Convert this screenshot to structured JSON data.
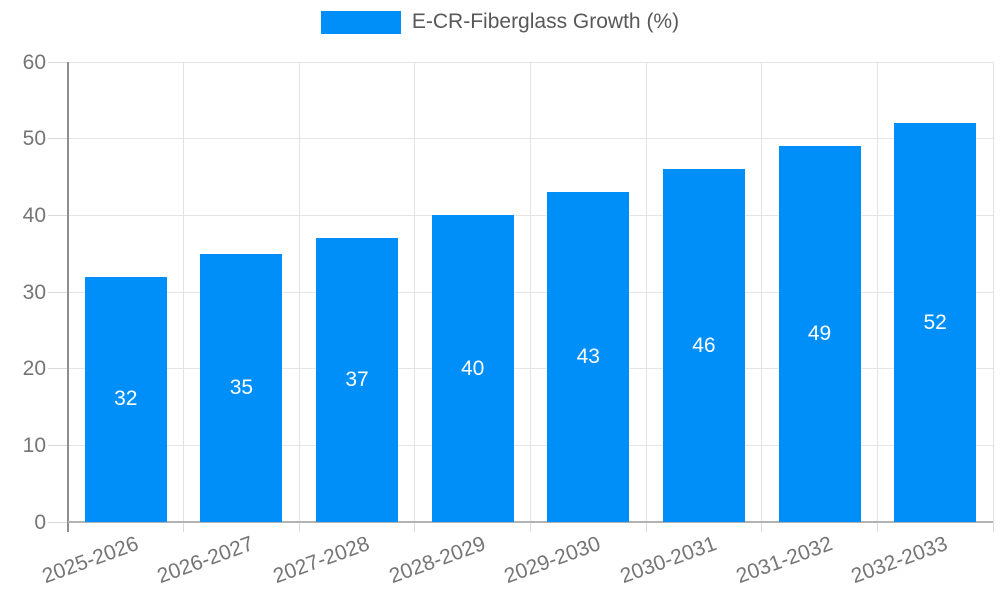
{
  "legend": {
    "label": "E-CR-Fiberglass Growth (%)"
  },
  "colors": {
    "bar": "#008FF8",
    "value_label": "#FFFFFF",
    "axis_label": "#757575",
    "legend_text": "#595959",
    "grid_horizontal": "#E6E6E6",
    "grid_vertical": "#E3E3E3",
    "tick": "#D9D9D9",
    "y_axis_line": "#8E8E8E",
    "x_axis_line": "#B3B3B3"
  },
  "chart_data": {
    "type": "bar",
    "title": "",
    "xlabel": "",
    "ylabel": "",
    "categories": [
      "2025-2026",
      "2026-2027",
      "2027-2028",
      "2028-2029",
      "2029-2030",
      "2030-2031",
      "2031-2032",
      "2032-2033"
    ],
    "series": [
      {
        "name": "E-CR-Fiberglass Growth (%)",
        "values": [
          32,
          35,
          37,
          40,
          43,
          46,
          49,
          52
        ]
      }
    ],
    "value_labels": [
      32,
      35,
      37,
      40,
      43,
      46,
      49,
      52
    ],
    "ylim": [
      0,
      60
    ],
    "yticks": [
      0,
      10,
      20,
      30,
      40,
      50,
      60
    ],
    "grid": true,
    "legend_position": "top",
    "value_label_position": "inside-center",
    "x_label_rotation_deg": -20
  }
}
